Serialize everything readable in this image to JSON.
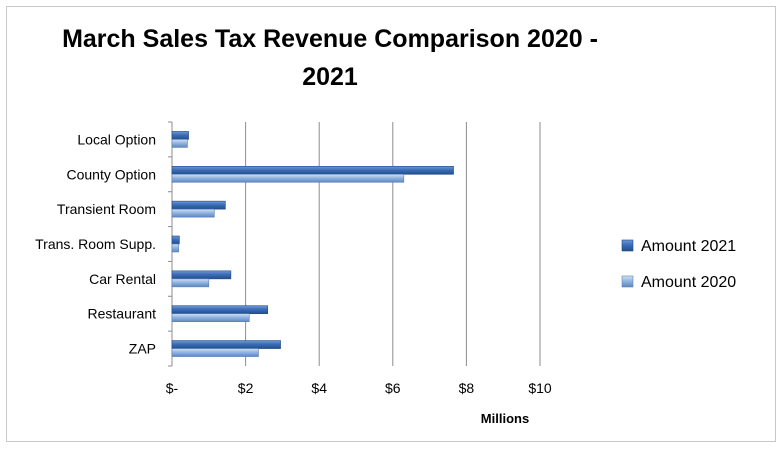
{
  "chart_data": {
    "type": "bar",
    "orientation": "horizontal",
    "title": "March Sales Tax Revenue Comparison 2020 - 2021",
    "xlabel": "Millions",
    "ylabel": "",
    "categories": [
      "Local Option",
      "County Option",
      "Transient Room",
      "Trans. Room Supp.",
      "Car Rental",
      "Restaurant",
      "ZAP"
    ],
    "series": [
      {
        "name": "Amount 2021",
        "color": "#3C6DB5",
        "values": [
          0.45,
          7.65,
          1.45,
          0.2,
          1.6,
          2.6,
          2.95
        ]
      },
      {
        "name": "Amount 2020",
        "color": "#8DB1DE",
        "values": [
          0.42,
          6.3,
          1.15,
          0.18,
          1.0,
          2.1,
          2.35
        ]
      }
    ],
    "xlim": [
      0,
      10
    ],
    "x_ticks": [
      0,
      2,
      4,
      6,
      8,
      10
    ],
    "x_tick_labels": [
      "$-",
      "$2",
      "$4",
      "$6",
      "$8",
      "$10"
    ],
    "grid": "vertical",
    "legend_position": "right"
  }
}
